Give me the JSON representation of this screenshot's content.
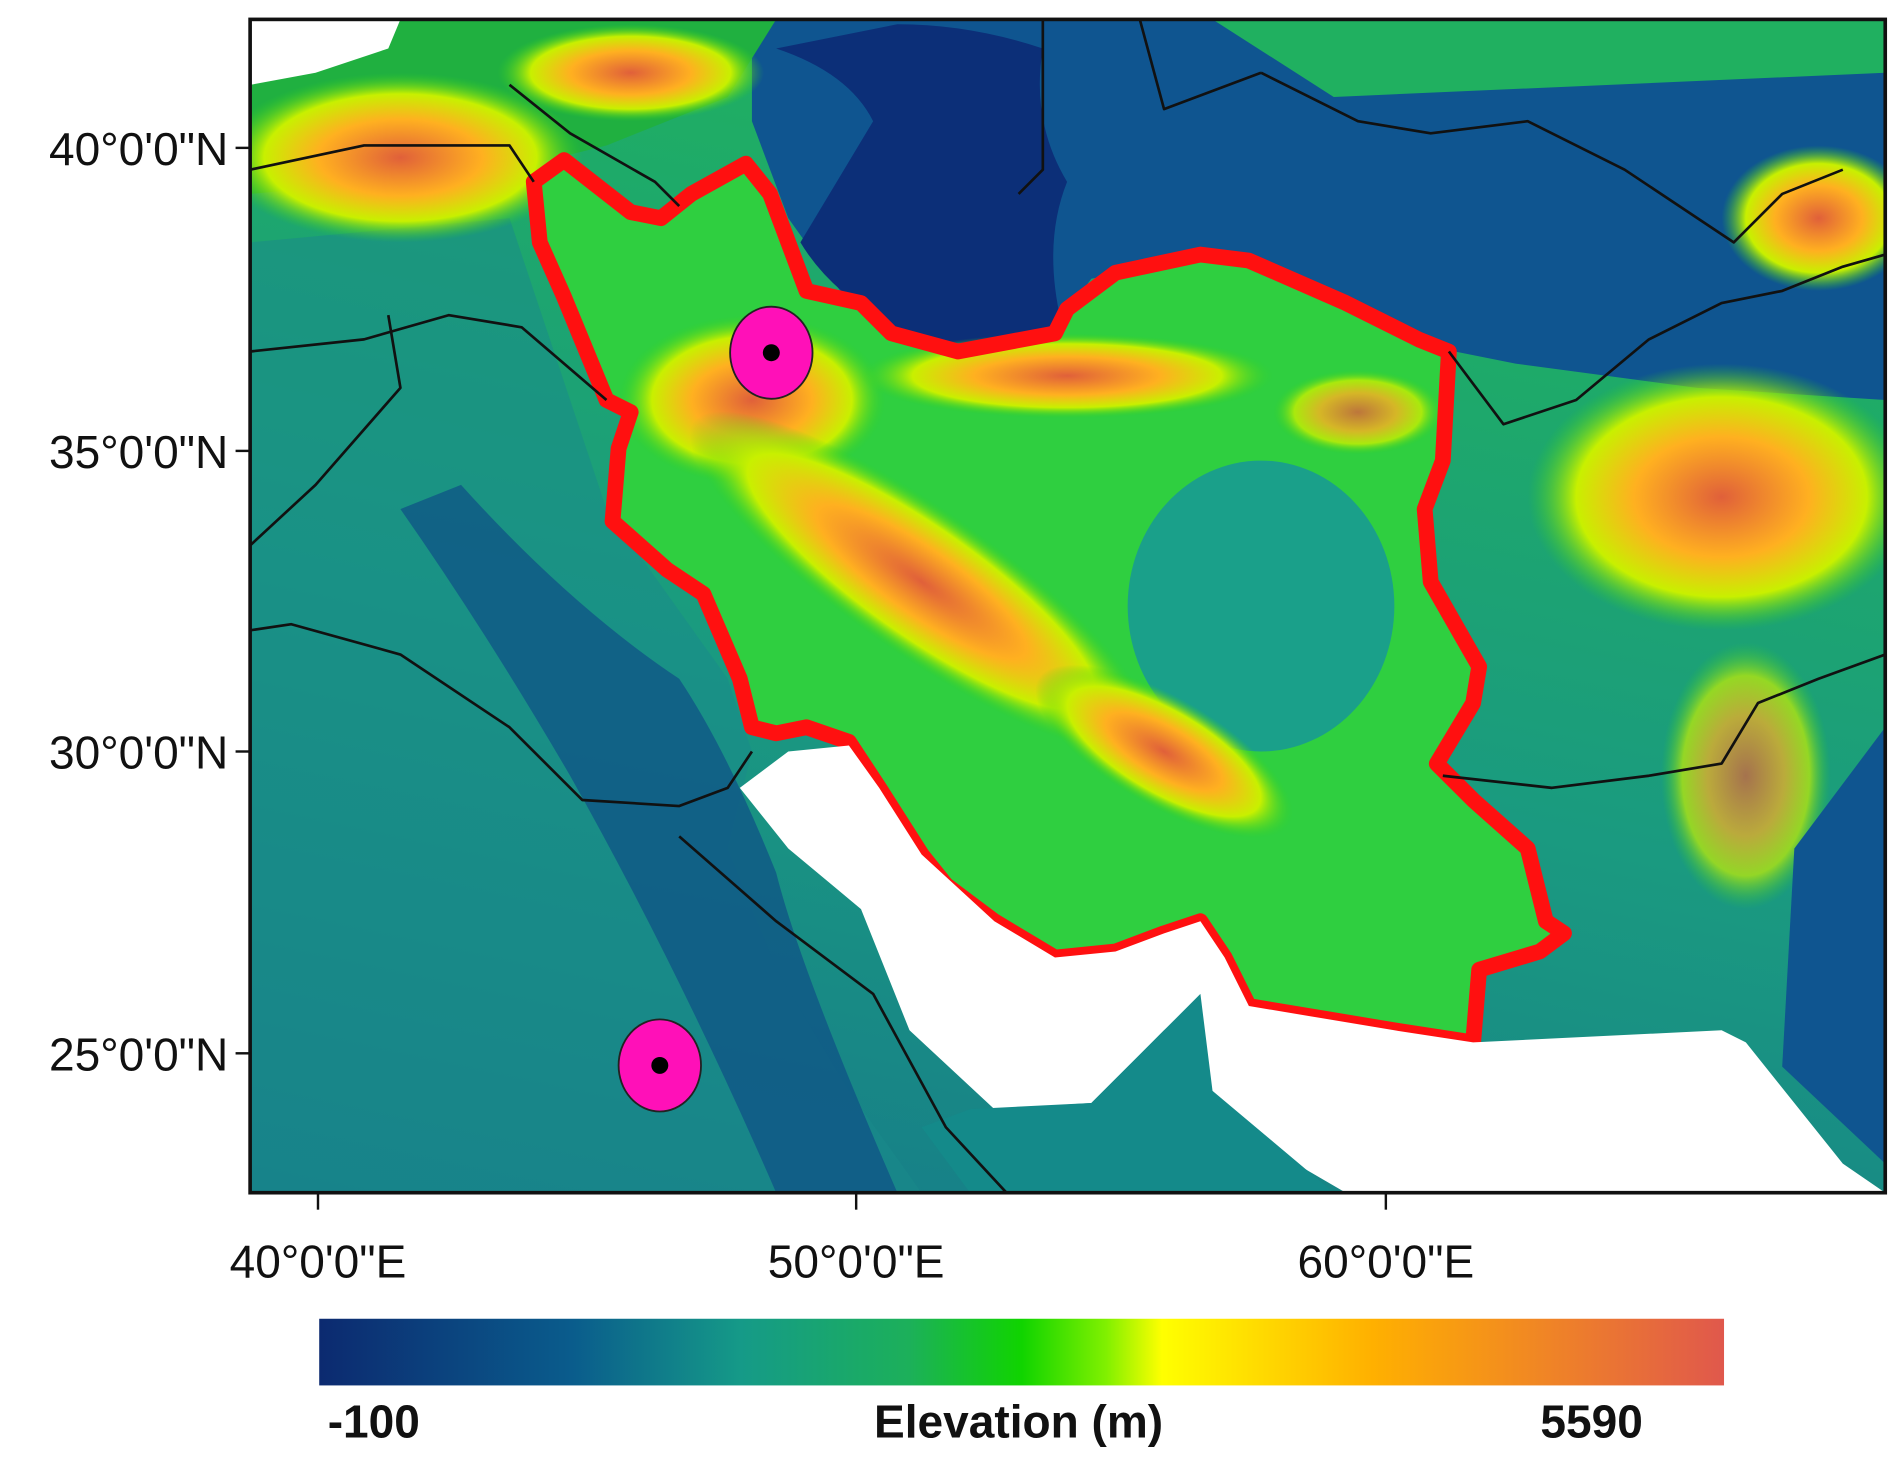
{
  "latitude_ticks": [
    "40°0'0\"N",
    "35°0'0\"N",
    "30°0'0\"N",
    "25°0'0\"N"
  ],
  "longitude_ticks": [
    "40°0'0\"E",
    "50°0'0\"E",
    "60°0'0\"E"
  ],
  "colorbar": {
    "min_label": -100,
    "title": "Elevation (m)",
    "max_label": 5590
  }
}
